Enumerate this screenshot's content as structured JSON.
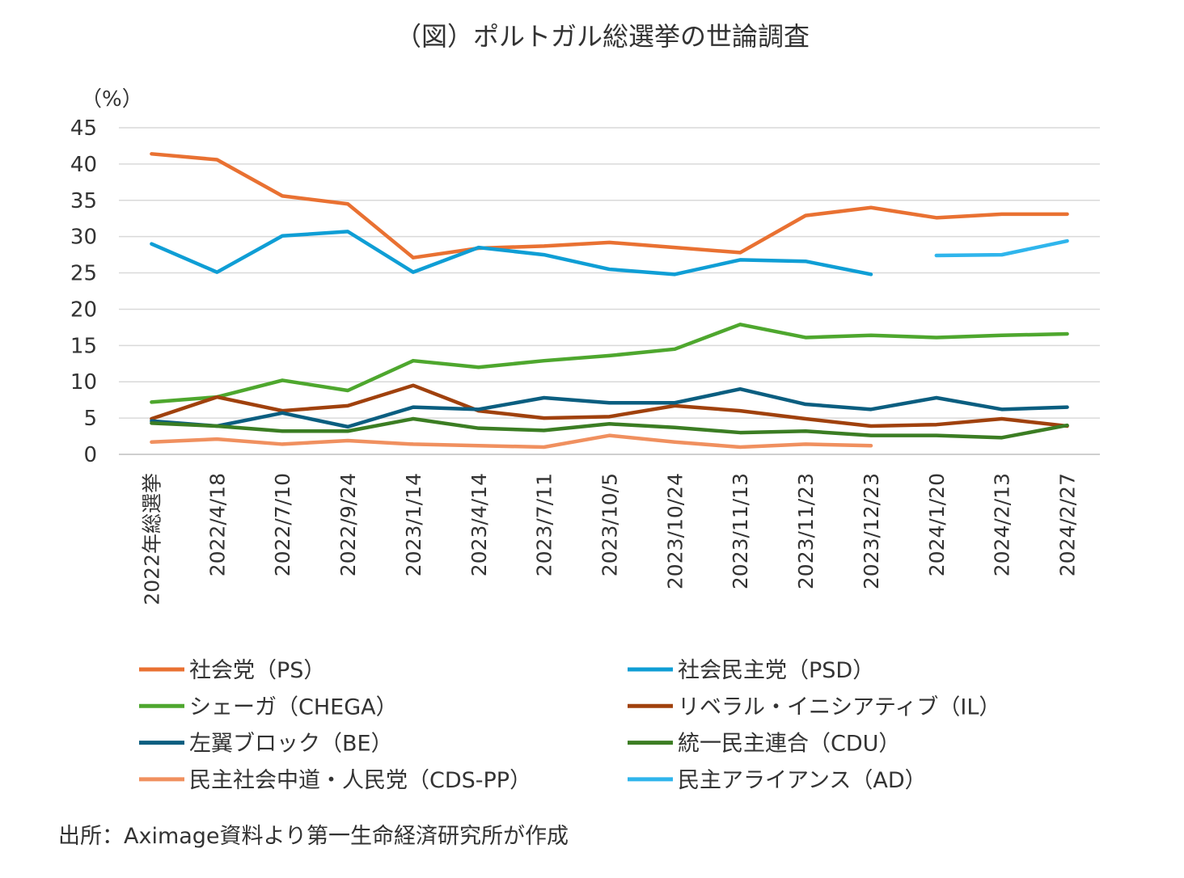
{
  "chart_data": {
    "type": "line",
    "title": "（図）ポルトガル総選挙の世論調査",
    "ylabel": "（%）",
    "source": "出所：Aximage資料より第一生命経済研究所が作成",
    "ylim": [
      0,
      45
    ],
    "yticks": [
      0,
      5,
      10,
      15,
      20,
      25,
      30,
      35,
      40,
      45
    ],
    "grid": true,
    "legend_placement": "bottom",
    "categories": [
      "2022年総選挙",
      "2022/4/18",
      "2022/7/10",
      "2022/9/24",
      "2023/1/14",
      "2023/4/14",
      "2023/7/11",
      "2023/10/5",
      "2023/10/24",
      "2023/11/13",
      "2023/11/23",
      "2023/12/23",
      "2024/1/20",
      "2024/2/13",
      "2024/2/27"
    ],
    "series": [
      {
        "name": "社会党（PS）",
        "color": "#E97132",
        "values": [
          41.4,
          40.6,
          35.6,
          34.5,
          27.1,
          28.4,
          28.7,
          29.2,
          28.5,
          27.8,
          32.9,
          34.0,
          32.6,
          33.1,
          33.1
        ]
      },
      {
        "name": "社会民主党（PSD）",
        "color": "#0F9ED5",
        "values": [
          29.0,
          25.1,
          30.1,
          30.7,
          25.1,
          28.5,
          27.5,
          25.5,
          24.8,
          26.8,
          26.6,
          24.8,
          null,
          null,
          null
        ]
      },
      {
        "name": "シェーガ（CHEGA）",
        "color": "#4EA72E",
        "values": [
          7.2,
          7.9,
          10.2,
          8.8,
          12.9,
          12.0,
          12.9,
          13.6,
          14.5,
          17.9,
          16.1,
          16.4,
          16.1,
          16.4,
          16.6
        ]
      },
      {
        "name": "リベラル・イニシアティブ（IL）",
        "color": "#A0410D",
        "values": [
          4.9,
          7.9,
          6.0,
          6.7,
          9.5,
          6.0,
          5.0,
          5.2,
          6.7,
          6.0,
          4.9,
          3.9,
          4.1,
          4.9,
          3.9
        ]
      },
      {
        "name": "左翼ブロック（BE）",
        "color": "#0B5E80",
        "values": [
          4.6,
          3.9,
          5.7,
          3.8,
          6.5,
          6.2,
          7.8,
          7.1,
          7.1,
          9.0,
          6.9,
          6.2,
          7.8,
          6.2,
          6.5
        ]
      },
      {
        "name": "統一民主連合（CDU）",
        "color": "#3B7D23",
        "values": [
          4.3,
          3.9,
          3.2,
          3.2,
          4.9,
          3.6,
          3.3,
          4.2,
          3.7,
          3.0,
          3.2,
          2.6,
          2.6,
          2.3,
          4.0
        ]
      },
      {
        "name": "民主社会中道・人民党（CDS-PP）",
        "color": "#F0905F",
        "values": [
          1.7,
          2.1,
          1.4,
          1.9,
          1.4,
          1.2,
          1.0,
          2.6,
          1.7,
          1.0,
          1.4,
          1.2,
          null,
          null,
          null
        ]
      },
      {
        "name": "民主アライアンス（AD）",
        "color": "#2FB5EC",
        "values": [
          null,
          null,
          null,
          null,
          null,
          null,
          null,
          null,
          null,
          null,
          null,
          null,
          27.4,
          27.5,
          29.4
        ]
      }
    ]
  }
}
